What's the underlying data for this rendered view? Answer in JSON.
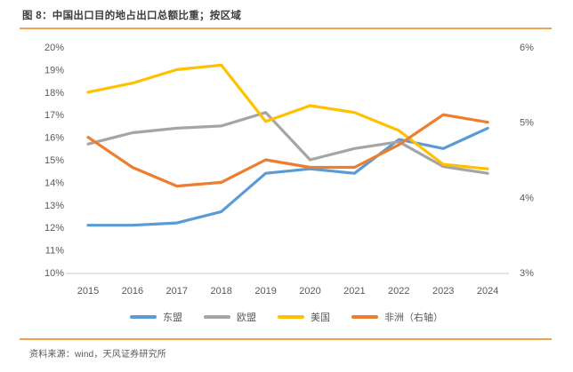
{
  "page": {
    "title": "图 8：中国出口目的地占出口总额比重；按区域",
    "source": "资料来源：wind，天风证券研究所",
    "accent_rule_color": "#F0A156"
  },
  "chart_data": {
    "type": "line",
    "title": "中国出口目的地占出口总额比重；按区域",
    "x_categories": [
      "2015",
      "2016",
      "2017",
      "2018",
      "2019",
      "2020",
      "2021",
      "2022",
      "2023",
      "2024"
    ],
    "left_axis": {
      "min": 10,
      "max": 20,
      "unit": "%",
      "tick_labels": [
        "20%",
        "19%",
        "18%",
        "17%",
        "16%",
        "15%",
        "14%",
        "13%",
        "12%",
        "11%",
        "10%"
      ]
    },
    "right_axis": {
      "min": 3,
      "max": 6,
      "unit": "%",
      "tick_labels": [
        "6%",
        "5%",
        "4%",
        "3%"
      ]
    },
    "grid": false,
    "legend_position": "bottom",
    "axis_text_color": "#595959",
    "axis_line_color": "#DCDCDC",
    "series": [
      {
        "name": "东盟",
        "axis": "left",
        "color": "#5B9BD5",
        "values": [
          12.1,
          12.1,
          12.2,
          12.7,
          14.4,
          14.6,
          14.4,
          15.9,
          15.5,
          16.4
        ]
      },
      {
        "name": "欧盟",
        "axis": "left",
        "color": "#A5A5A5",
        "values": [
          15.7,
          16.2,
          16.4,
          16.5,
          17.1,
          15.0,
          15.5,
          15.8,
          14.7,
          14.4
        ]
      },
      {
        "name": "美国",
        "axis": "left",
        "color": "#FFC000",
        "values": [
          18.0,
          18.4,
          19.0,
          19.2,
          16.7,
          17.4,
          17.1,
          16.3,
          14.8,
          14.6
        ]
      },
      {
        "name": "非洲（右轴）",
        "axis": "right",
        "color": "#ED7D31",
        "values": [
          4.8,
          4.4,
          4.15,
          4.2,
          4.5,
          4.4,
          4.4,
          4.7,
          5.1,
          5.0
        ]
      }
    ]
  }
}
